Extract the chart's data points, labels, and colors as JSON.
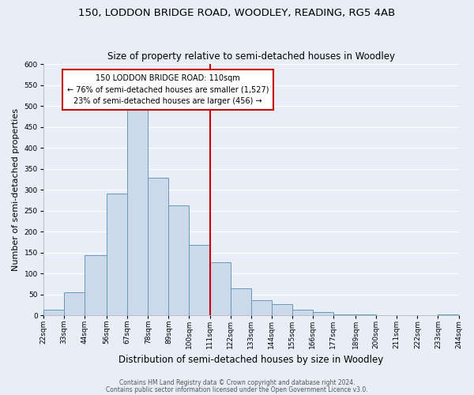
{
  "title": "150, LODDON BRIDGE ROAD, WOODLEY, READING, RG5 4AB",
  "subtitle": "Size of property relative to semi-detached houses in Woodley",
  "xlabel": "Distribution of semi-detached houses by size in Woodley",
  "ylabel": "Number of semi-detached properties",
  "bin_labels": [
    "22sqm",
    "33sqm",
    "44sqm",
    "56sqm",
    "67sqm",
    "78sqm",
    "89sqm",
    "100sqm",
    "111sqm",
    "122sqm",
    "133sqm",
    "144sqm",
    "155sqm",
    "166sqm",
    "177sqm",
    "189sqm",
    "200sqm",
    "211sqm",
    "222sqm",
    "233sqm",
    "244sqm"
  ],
  "bin_edges": [
    22,
    33,
    44,
    56,
    67,
    78,
    89,
    100,
    111,
    122,
    133,
    144,
    155,
    166,
    177,
    189,
    200,
    211,
    222,
    233,
    244
  ],
  "bar_heights": [
    13,
    55,
    143,
    290,
    490,
    328,
    263,
    168,
    127,
    64,
    36,
    27,
    13,
    8,
    3,
    2,
    1,
    0,
    0,
    2
  ],
  "bar_color": "#ccd9ea",
  "bar_edge_color": "#6699bb",
  "vline_x": 111,
  "vline_color": "#cc0000",
  "ylim": [
    0,
    600
  ],
  "yticks": [
    0,
    50,
    100,
    150,
    200,
    250,
    300,
    350,
    400,
    450,
    500,
    550,
    600
  ],
  "annotation_title": "150 LODDON BRIDGE ROAD: 110sqm",
  "annotation_line1": "← 76% of semi-detached houses are smaller (1,527)",
  "annotation_line2": "23% of semi-detached houses are larger (456) →",
  "annotation_box_color": "#ffffff",
  "annotation_box_edge": "#cc0000",
  "footer1": "Contains HM Land Registry data © Crown copyright and database right 2024.",
  "footer2": "Contains public sector information licensed under the Open Government Licence v3.0.",
  "background_color": "#e8eef7",
  "grid_color": "#ffffff",
  "title_fontsize": 9.5,
  "subtitle_fontsize": 8.5,
  "ylabel_fontsize": 8,
  "xlabel_fontsize": 8.5,
  "tick_fontsize": 6.5,
  "ann_fontsize": 7,
  "footer_fontsize": 5.5
}
